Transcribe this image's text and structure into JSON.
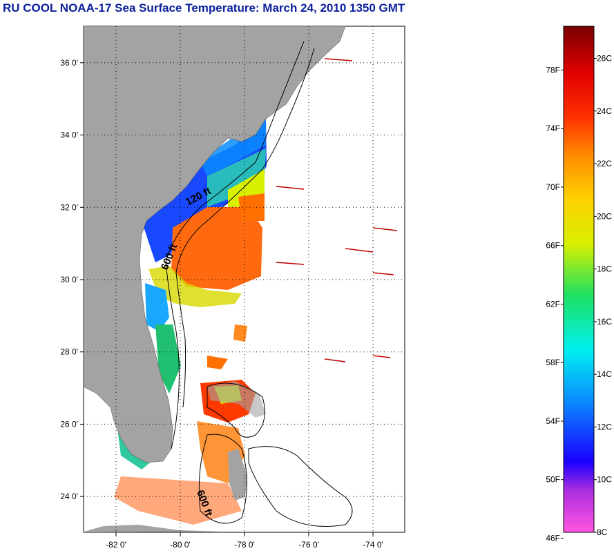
{
  "title": "RU COOL  NOAA-17  Sea Surface Temperature:  March 24, 2010 1350 GMT",
  "map": {
    "lat_ticks": [
      "36 0'",
      "34 0'",
      "32 0'",
      "30 0'",
      "28 0'",
      "26 0'",
      "24 0'"
    ],
    "lon_ticks": [
      "-82 0'",
      "-80 0'",
      "-78 0'",
      "-76 0'",
      "-74 0'"
    ],
    "lat_range": [
      23,
      37
    ],
    "lon_range": [
      -83,
      -73
    ],
    "contours": [
      {
        "label": "120 ft"
      },
      {
        "label": "600 ft"
      },
      {
        "label": "600 ft"
      }
    ]
  },
  "legend": {
    "fahrenheit_labels": [
      "78F",
      "74F",
      "70F",
      "66F",
      "62F",
      "58F",
      "54F",
      "50F",
      "46F"
    ],
    "celsius_labels": [
      "26C",
      "24C",
      "22C",
      "20C",
      "18C",
      "16C",
      "14C",
      "12C",
      "10C",
      "8C"
    ],
    "colors": [
      "#ff44dd",
      "#7a16d8",
      "#0000ff",
      "#0090ff",
      "#00f0e8",
      "#1ee060",
      "#c8f000",
      "#ffe000",
      "#ffa000",
      "#ff5000",
      "#ff0000",
      "#c80000",
      "#7a0000"
    ]
  }
}
